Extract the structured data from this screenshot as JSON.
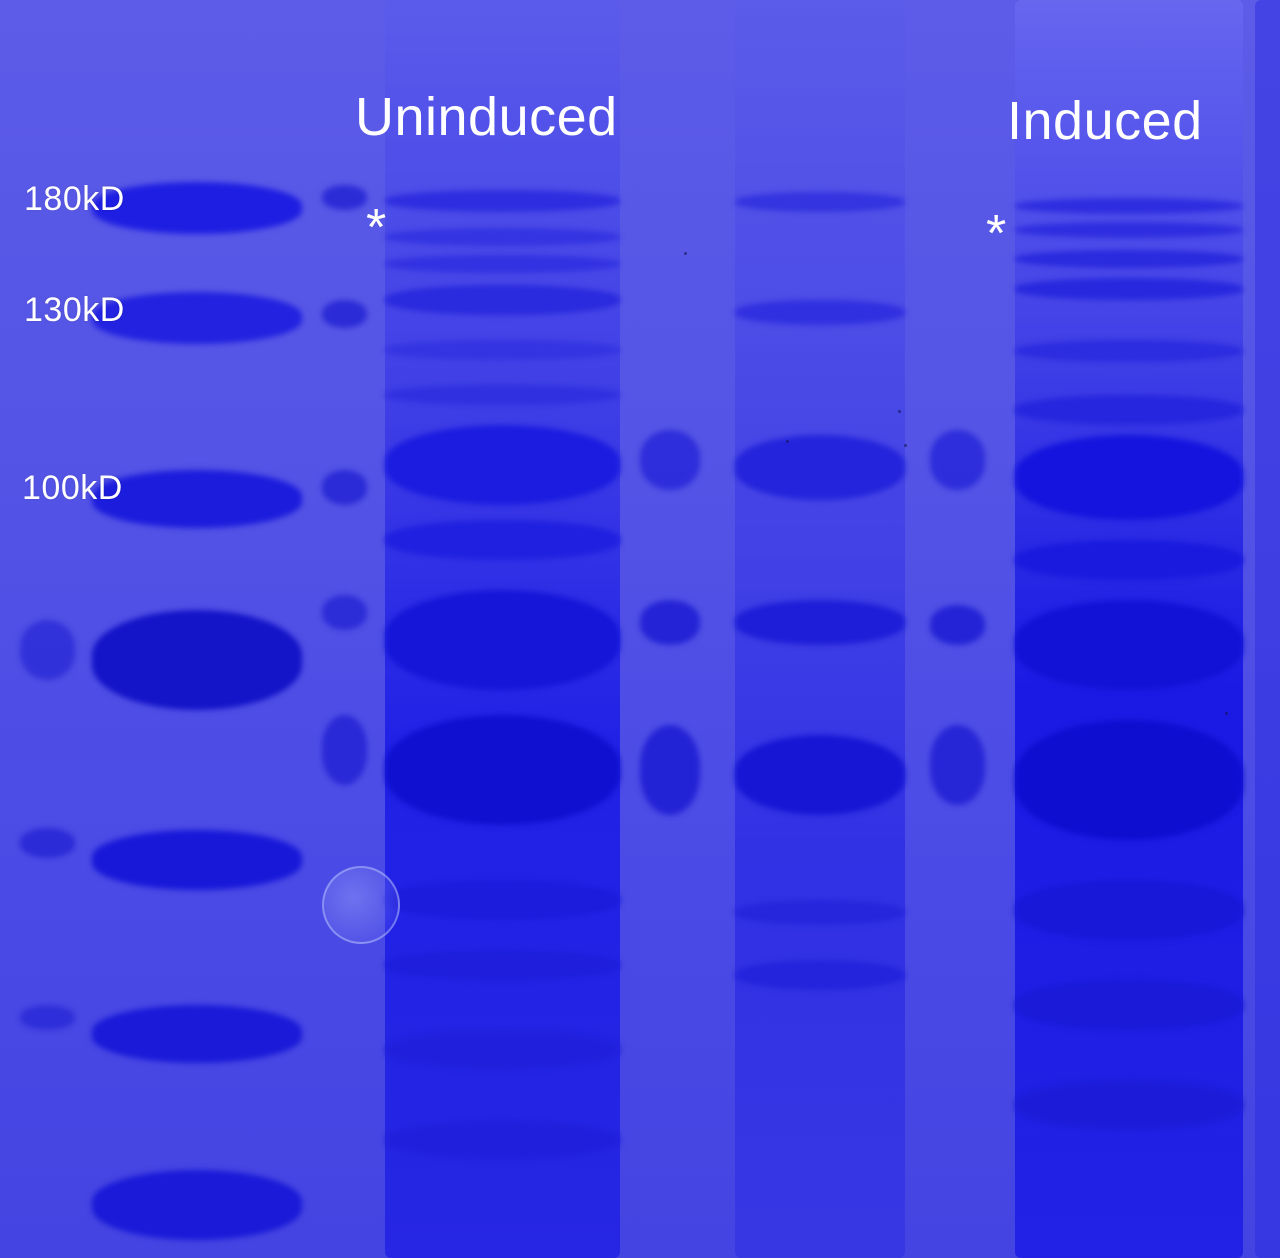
{
  "image": {
    "type": "coomassie-stained SDS-PAGE gel",
    "background_color": "#5454e6",
    "band_color": "#1f1fe0"
  },
  "markers": [
    {
      "label": "180kD"
    },
    {
      "label": "130kD"
    },
    {
      "label": "100kD"
    }
  ],
  "conditions": {
    "uninduced": "Uninduced",
    "induced": "Induced"
  },
  "asterisks": [
    "*",
    "*"
  ]
}
